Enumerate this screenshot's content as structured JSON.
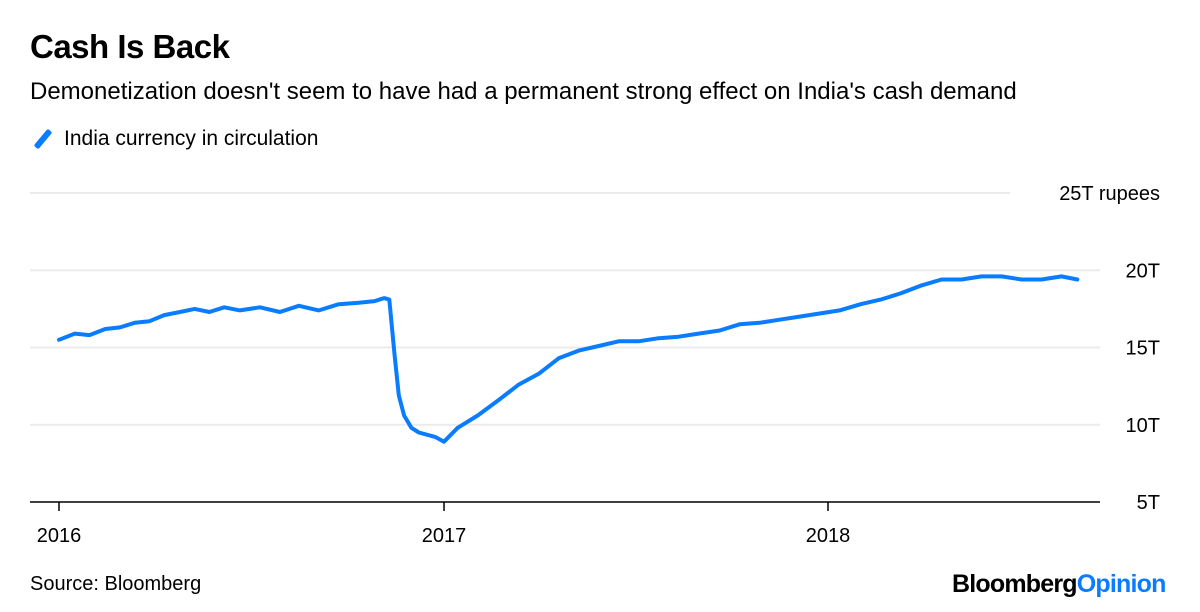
{
  "chart_data": {
    "type": "line",
    "title": "Cash Is Back",
    "subtitle": "Demonetization doesn't seem to have had a permanent strong effect on India's cash demand",
    "xlabel": "",
    "ylabel": "",
    "ylim": [
      5,
      25
    ],
    "xlim": [
      "2016-01-01",
      "2018-09-01"
    ],
    "grid": true,
    "legend_position": "top-left",
    "y_ticks": [
      {
        "value": 25,
        "label": "25T rupees"
      },
      {
        "value": 20,
        "label": "20T"
      },
      {
        "value": 15,
        "label": "15T"
      },
      {
        "value": 10,
        "label": "10T"
      },
      {
        "value": 5,
        "label": "5T"
      }
    ],
    "x_ticks": [
      {
        "value": "2016-01-01",
        "label": "2016"
      },
      {
        "value": "2017-01-01",
        "label": "2017"
      },
      {
        "value": "2018-01-01",
        "label": "2018"
      }
    ],
    "series": [
      {
        "name": "India currency in circulation",
        "color": "#0a7cff",
        "x": [
          "2016-01-01",
          "2016-01-16",
          "2016-01-30",
          "2016-02-14",
          "2016-02-28",
          "2016-03-13",
          "2016-03-27",
          "2016-04-10",
          "2016-04-25",
          "2016-05-09",
          "2016-05-23",
          "2016-06-06",
          "2016-06-21",
          "2016-07-10",
          "2016-07-29",
          "2016-08-16",
          "2016-09-04",
          "2016-09-23",
          "2016-10-12",
          "2016-10-27",
          "2016-11-05",
          "2016-11-10",
          "2016-11-15",
          "2016-11-19",
          "2016-11-24",
          "2016-12-01",
          "2016-12-08",
          "2016-12-24",
          "2017-01-01",
          "2017-01-14",
          "2017-02-02",
          "2017-02-22",
          "2017-03-13",
          "2017-04-01",
          "2017-04-20",
          "2017-05-09",
          "2017-05-28",
          "2017-06-16",
          "2017-07-05",
          "2017-07-24",
          "2017-08-12",
          "2017-08-31",
          "2017-09-20",
          "2017-10-09",
          "2017-10-28",
          "2017-11-16",
          "2017-12-05",
          "2017-12-24",
          "2018-01-12",
          "2018-02-01",
          "2018-02-20",
          "2018-03-11",
          "2018-03-30",
          "2018-04-19",
          "2018-05-08",
          "2018-05-27",
          "2018-06-15",
          "2018-07-04",
          "2018-07-23",
          "2018-08-11",
          "2018-08-26"
        ],
        "values": [
          15.5,
          15.9,
          15.8,
          16.2,
          16.3,
          16.6,
          16.7,
          17.1,
          17.3,
          17.5,
          17.3,
          17.6,
          17.4,
          17.6,
          17.3,
          17.7,
          17.4,
          17.8,
          17.9,
          18.0,
          18.2,
          18.1,
          14.5,
          11.9,
          10.6,
          9.8,
          9.5,
          9.2,
          8.9,
          9.8,
          10.6,
          11.6,
          12.6,
          13.3,
          14.3,
          14.8,
          15.1,
          15.4,
          15.4,
          15.6,
          15.7,
          15.9,
          16.1,
          16.5,
          16.6,
          16.8,
          17.0,
          17.2,
          17.4,
          17.8,
          18.1,
          18.5,
          19.0,
          19.4,
          19.4,
          19.6,
          19.6,
          19.4,
          19.4,
          19.6,
          19.4
        ]
      }
    ]
  },
  "footer": {
    "source": "Source: Bloomberg",
    "logo_part1": "Bloomberg",
    "logo_part2": "Opinion"
  }
}
